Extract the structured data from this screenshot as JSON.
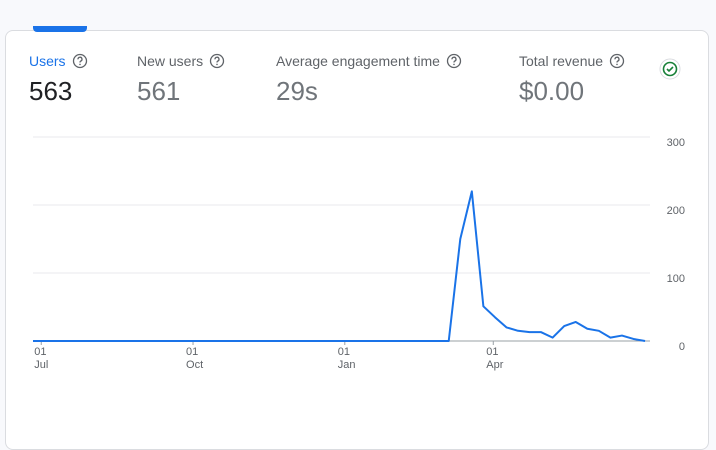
{
  "metrics": [
    {
      "label": "Users",
      "value": "563"
    },
    {
      "label": "New users",
      "value": "561"
    },
    {
      "label": "Average engagement time",
      "value": "29s"
    },
    {
      "label": "Total revenue",
      "value": "$0.00"
    }
  ],
  "chart_data": {
    "type": "line",
    "x": [
      -5,
      2,
      9,
      16,
      23,
      30,
      37,
      44,
      51,
      58,
      65,
      72,
      79,
      86,
      93,
      100,
      107,
      114,
      121,
      128,
      135,
      142,
      149,
      156,
      163,
      170,
      177,
      184,
      191,
      198,
      205,
      212,
      219,
      226,
      233,
      240,
      247,
      254,
      261,
      268,
      275,
      282,
      289,
      296,
      303,
      310,
      317,
      324,
      331,
      338,
      345,
      352,
      359,
      366
    ],
    "series": [
      {
        "name": "Users",
        "color": "#1a73e8",
        "values": [
          0,
          0,
          0,
          0,
          0,
          0,
          0,
          0,
          0,
          0,
          0,
          0,
          0,
          0,
          0,
          0,
          0,
          0,
          0,
          0,
          0,
          0,
          0,
          0,
          0,
          0,
          0,
          0,
          0,
          0,
          0,
          0,
          0,
          0,
          0,
          0,
          0,
          150,
          220,
          51,
          35,
          20,
          15,
          13,
          13,
          5,
          22,
          28,
          18,
          15,
          5,
          8,
          3,
          0
        ]
      }
    ],
    "xlim": [
      -5,
      369
    ],
    "xticks": [
      {
        "value": 0,
        "label": "01 Jul"
      },
      {
        "value": 92,
        "label": "01 Oct"
      },
      {
        "value": 184,
        "label": "01 Jan"
      },
      {
        "value": 274,
        "label": "01 Apr"
      }
    ],
    "ylim": [
      0,
      300
    ],
    "yticks": [
      0,
      100,
      200,
      300
    ],
    "grid": true
  }
}
